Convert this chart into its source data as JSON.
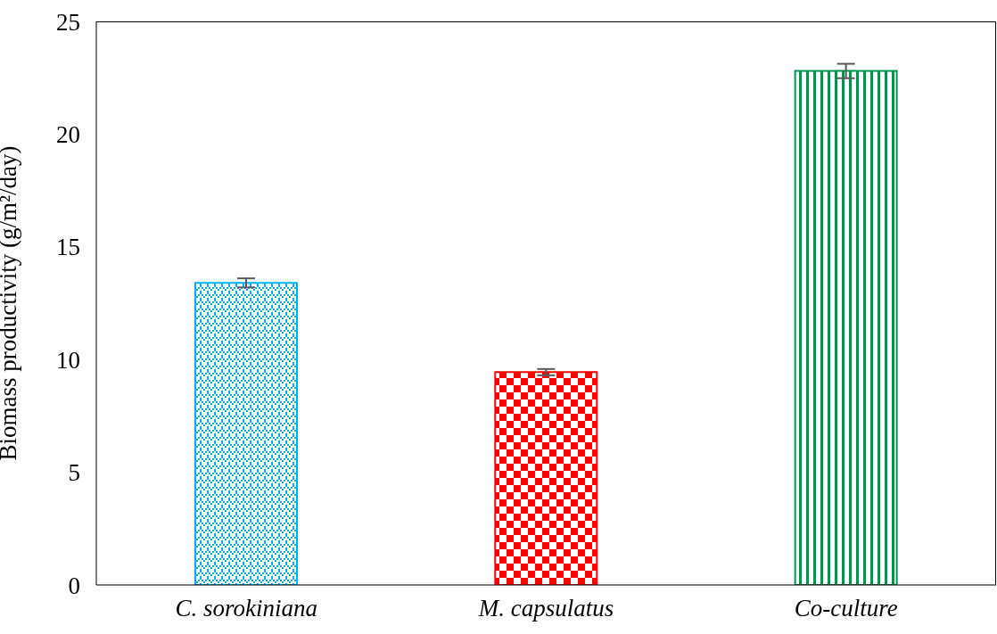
{
  "chart_data": {
    "type": "bar",
    "ylabel": "Biomass productivity (g/m²/day)",
    "categories": [
      "C. sorokiniana",
      "M. capsulatus",
      "Co-culture"
    ],
    "values": [
      13.4,
      9.44,
      22.8
    ],
    "errors": [
      0.2,
      0.14,
      0.32
    ],
    "colors": [
      "#00b0f0",
      "#ff0000",
      "#00964b"
    ],
    "ylim": [
      0,
      25
    ],
    "yticks": [
      0,
      5,
      10,
      15,
      20,
      25
    ]
  }
}
